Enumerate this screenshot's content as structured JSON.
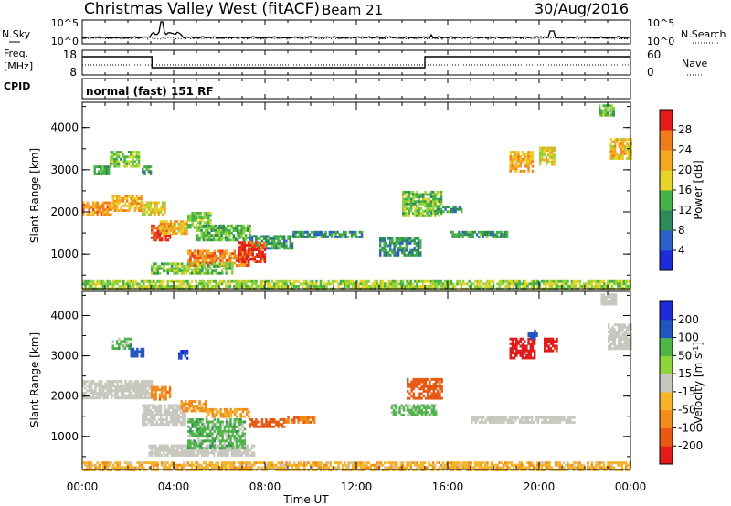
{
  "header": {
    "station": "Christmas Valley West (fitACF)",
    "beam": "Beam 21",
    "date": "30/Aug/2016"
  },
  "noise_panel": {
    "left_label": "N.Sky",
    "left_ticks": [
      "10^5",
      "10^0"
    ],
    "right_ticks": [
      "10^5",
      "10^0"
    ],
    "right_label": "N.Search"
  },
  "freq_panel": {
    "left_label_1": "Freq.",
    "left_label_2": "[MHz]",
    "left_ticks": [
      "18",
      "8"
    ],
    "right_ticks": [
      "60",
      "0"
    ],
    "right_label": "Nave"
  },
  "cpid": {
    "label": "CPID",
    "value": "normal (fast) 151 RF"
  },
  "colors": {
    "scale": [
      "#1e2bd9",
      "#2c5fc8",
      "#2f8a5a",
      "#47b247",
      "#8fd43a",
      "#e6d32b",
      "#f5a623",
      "#f07d1c",
      "#e8401a",
      "#e21b1b"
    ],
    "velocity": [
      "#e21b1b",
      "#e85a14",
      "#f08c1c",
      "#f5b42a",
      "#c8c8c0",
      "#8fd43a",
      "#4eb548",
      "#2f8a5a",
      "#2255c0",
      "#1e2bd9"
    ],
    "ground_scatter": "#c8c8c0"
  },
  "chart_data": [
    {
      "type": "heatmap",
      "title": "Power",
      "xlabel": "Time UT",
      "ylabel": "Slant Range [km]",
      "x_ticks": [
        "00:00",
        "04:00",
        "08:00",
        "12:00",
        "16:00",
        "20:00",
        "00:00"
      ],
      "y_ticks": [
        "1000",
        "2000",
        "3000",
        "4000"
      ],
      "xlim_hours": [
        0,
        24
      ],
      "ylim_km": [
        180,
        4600
      ],
      "colorbar": {
        "label": "Power [dB]",
        "ticks": [
          "4",
          "8",
          "12",
          "16",
          "20",
          "24",
          "28"
        ],
        "range": [
          0,
          30
        ]
      },
      "regions": [
        {
          "t0": 0.0,
          "t1": 1.3,
          "r0": 1950,
          "r1": 2250,
          "v": 21
        },
        {
          "t0": 1.3,
          "t1": 2.6,
          "r0": 2050,
          "r1": 2400,
          "v": 19
        },
        {
          "t0": 2.6,
          "t1": 3.6,
          "r0": 1950,
          "r1": 2250,
          "v": 17
        },
        {
          "t0": 3.0,
          "t1": 3.8,
          "r0": 1350,
          "r1": 1700,
          "v": 26
        },
        {
          "t0": 3.3,
          "t1": 4.6,
          "r0": 1500,
          "r1": 1800,
          "v": 18
        },
        {
          "t0": 4.6,
          "t1": 5.6,
          "r0": 1650,
          "r1": 2000,
          "v": 13
        },
        {
          "t0": 5.0,
          "t1": 7.3,
          "r0": 1350,
          "r1": 1700,
          "v": 11
        },
        {
          "t0": 7.3,
          "t1": 9.2,
          "r0": 1150,
          "r1": 1450,
          "v": 9
        },
        {
          "t0": 9.2,
          "t1": 12.2,
          "r0": 1400,
          "r1": 1550,
          "v": 8
        },
        {
          "t0": 4.6,
          "t1": 7.3,
          "r0": 750,
          "r1": 1100,
          "v": 22
        },
        {
          "t0": 6.8,
          "t1": 8.0,
          "r0": 800,
          "r1": 1300,
          "v": 26
        },
        {
          "t0": 3.0,
          "t1": 6.6,
          "r0": 550,
          "r1": 800,
          "v": 12
        },
        {
          "t0": 1.2,
          "t1": 2.5,
          "r0": 3100,
          "r1": 3450,
          "v": 12
        },
        {
          "t0": 0.5,
          "t1": 1.2,
          "r0": 2900,
          "r1": 3100,
          "v": 10
        },
        {
          "t0": 2.6,
          "t1": 3.0,
          "r0": 2900,
          "r1": 3100,
          "v": 9
        },
        {
          "t0": 14.0,
          "t1": 15.7,
          "r0": 1900,
          "r1": 2500,
          "v": 12
        },
        {
          "t0": 15.5,
          "t1": 16.6,
          "r0": 2000,
          "r1": 2150,
          "v": 9
        },
        {
          "t0": 13.0,
          "t1": 14.8,
          "r0": 1000,
          "r1": 1400,
          "v": 8
        },
        {
          "t0": 16.0,
          "t1": 18.6,
          "r0": 1400,
          "r1": 1550,
          "v": 9
        },
        {
          "t0": 18.7,
          "t1": 19.7,
          "r0": 2950,
          "r1": 3450,
          "v": 19
        },
        {
          "t0": 20.0,
          "t1": 20.7,
          "r0": 3150,
          "r1": 3550,
          "v": 17
        },
        {
          "t0": 23.1,
          "t1": 24.0,
          "r0": 3250,
          "r1": 3750,
          "v": 18
        },
        {
          "t0": 22.6,
          "t1": 23.3,
          "r0": 4300,
          "r1": 4550,
          "v": 12
        },
        {
          "t0": 0.0,
          "t1": 24.0,
          "r0": 200,
          "r1": 380,
          "v": 14
        }
      ]
    },
    {
      "type": "heatmap",
      "title": "Velocity",
      "xlabel": "Time UT",
      "ylabel": "Slant Range [km]",
      "x_ticks": [
        "00:00",
        "04:00",
        "08:00",
        "12:00",
        "16:00",
        "20:00",
        "00:00"
      ],
      "y_ticks": [
        "1000",
        "2000",
        "3000",
        "4000"
      ],
      "xlim_hours": [
        0,
        24
      ],
      "ylim_km": [
        180,
        4600
      ],
      "colorbar": {
        "label": "Velocity [m s^-1]",
        "ticks": [
          "-200",
          "-100",
          "-50",
          "-15",
          "15",
          "50",
          "100",
          "200"
        ],
        "range": [
          -250,
          250
        ]
      },
      "ground_scatter_regions": [
        {
          "t0": 0.0,
          "t1": 3.0,
          "r0": 1950,
          "r1": 2400
        },
        {
          "t0": 2.6,
          "t1": 4.5,
          "r0": 1300,
          "r1": 1800
        },
        {
          "t0": 2.9,
          "t1": 7.5,
          "r0": 550,
          "r1": 800
        },
        {
          "t0": 23.0,
          "t1": 24.0,
          "r0": 3200,
          "r1": 3800
        },
        {
          "t0": 17.0,
          "t1": 21.5,
          "r0": 1380,
          "r1": 1500
        },
        {
          "t0": 22.7,
          "t1": 23.4,
          "r0": 4300,
          "r1": 4550
        }
      ],
      "regions": [
        {
          "t0": 3.0,
          "t1": 3.8,
          "r0": 1950,
          "r1": 2250,
          "v": -80
        },
        {
          "t0": 4.3,
          "t1": 5.4,
          "r0": 1650,
          "r1": 1900,
          "v": -70
        },
        {
          "t0": 5.4,
          "t1": 7.3,
          "r0": 1500,
          "r1": 1700,
          "v": -60
        },
        {
          "t0": 7.3,
          "t1": 8.8,
          "r0": 1250,
          "r1": 1450,
          "v": -150
        },
        {
          "t0": 8.8,
          "t1": 10.2,
          "r0": 1350,
          "r1": 1500,
          "v": -90
        },
        {
          "t0": 4.6,
          "t1": 7.1,
          "r0": 700,
          "r1": 1450,
          "v": 30
        },
        {
          "t0": 0.0,
          "t1": 24.0,
          "r0": 200,
          "r1": 380,
          "v": -35
        },
        {
          "t0": 1.3,
          "t1": 2.1,
          "r0": 3200,
          "r1": 3450,
          "v": 30
        },
        {
          "t0": 2.1,
          "t1": 2.7,
          "r0": 3000,
          "r1": 3200,
          "v": 150
        },
        {
          "t0": 4.2,
          "t1": 4.6,
          "r0": 2950,
          "r1": 3150,
          "v": 200
        },
        {
          "t0": 14.2,
          "t1": 15.7,
          "r0": 1950,
          "r1": 2450,
          "v": -160
        },
        {
          "t0": 13.5,
          "t1": 15.5,
          "r0": 1550,
          "r1": 1800,
          "v": 25
        },
        {
          "t0": 18.7,
          "t1": 19.8,
          "r0": 2950,
          "r1": 3450,
          "v": -230
        },
        {
          "t0": 19.5,
          "t1": 19.9,
          "r0": 3450,
          "r1": 3650,
          "v": 160
        },
        {
          "t0": 20.2,
          "t1": 20.8,
          "r0": 3150,
          "r1": 3450,
          "v": -220
        }
      ]
    }
  ]
}
